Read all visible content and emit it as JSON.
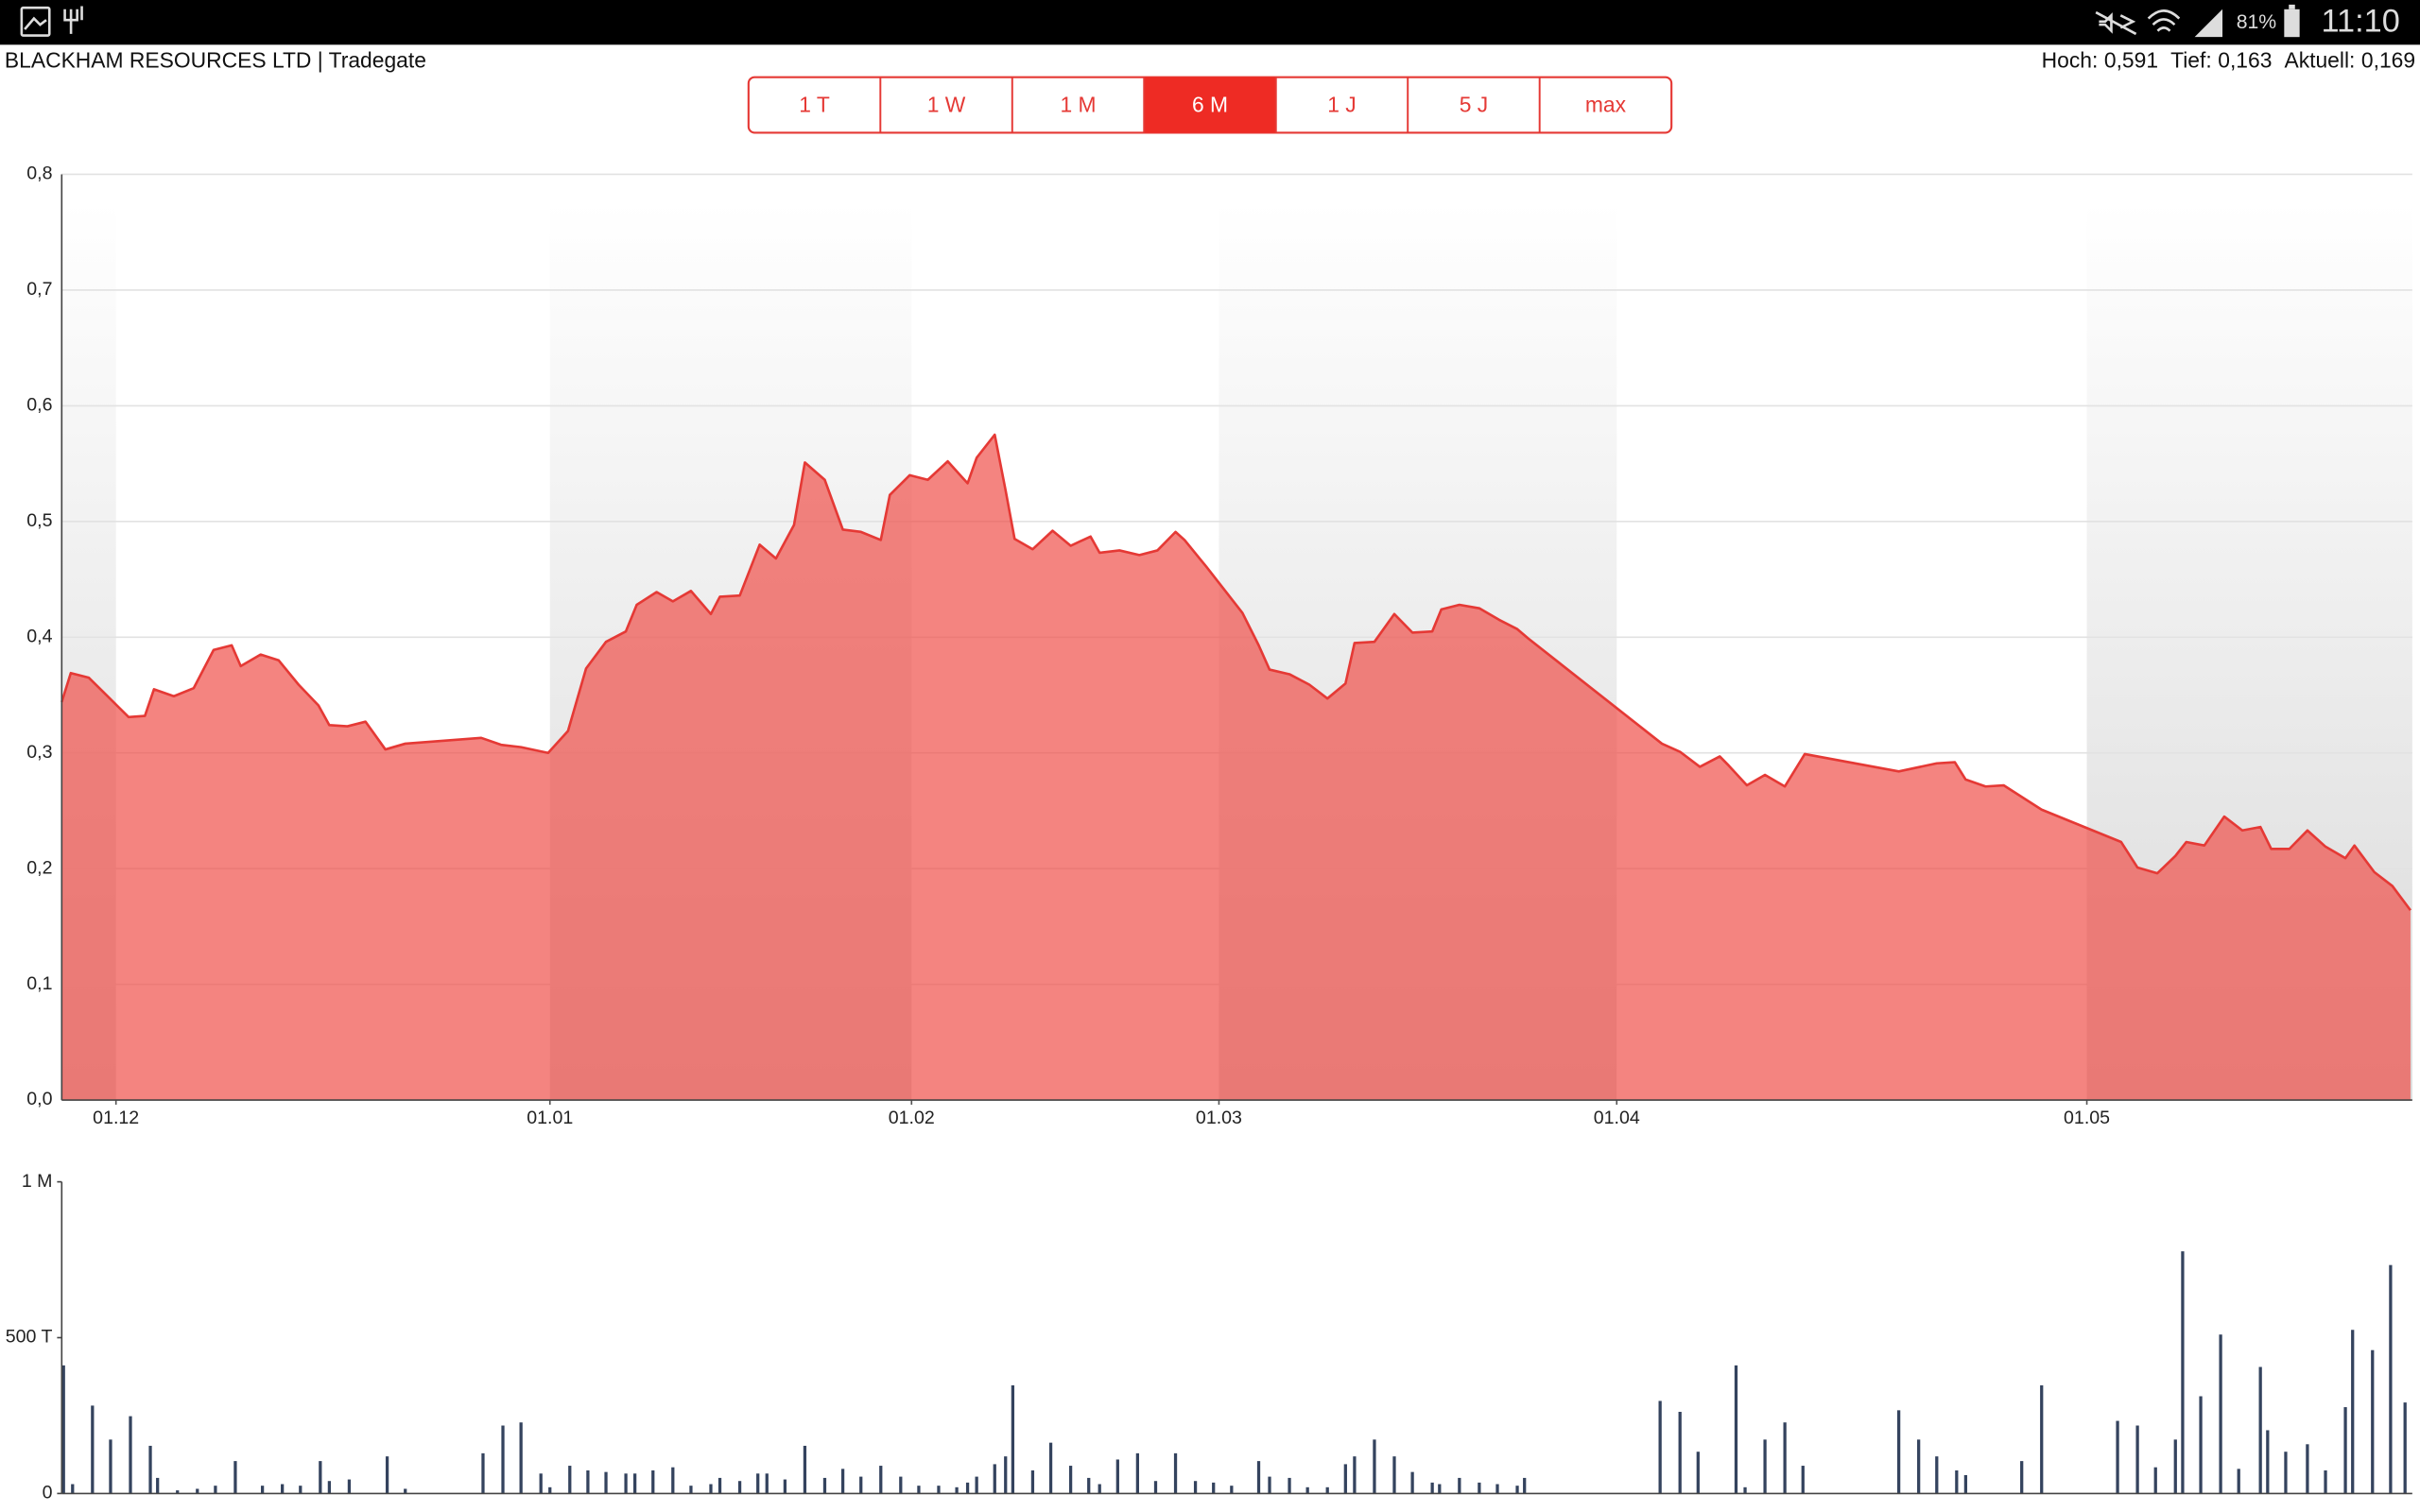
{
  "status_bar": {
    "battery": "81%",
    "time": "11:10"
  },
  "header": {
    "title": "BLACKHAM RESOURCES LTD | Tradegate",
    "stats": [
      {
        "label": "Hoch:",
        "value": "0,591"
      },
      {
        "label": "Tief:",
        "value": "0,163"
      },
      {
        "label": "Aktuell:",
        "value": "0,169"
      }
    ]
  },
  "tabs": [
    "1 T",
    "1 W",
    "1 M",
    "6 M",
    "1 J",
    "5 J",
    "max"
  ],
  "active_tab": 3,
  "chart_data": [
    {
      "type": "area",
      "color": "#e53935",
      "fill": "#f0504a",
      "grid": true,
      "x": [
        0,
        0.5,
        1.5,
        2.6,
        3.7,
        4.6,
        5.1,
        6.2,
        7.3,
        8.4,
        9.4,
        9.9,
        11.0,
        12.0,
        13.1,
        14.2,
        14.8,
        15.8,
        16.8,
        17.9,
        19.0,
        23.2,
        24.3,
        25.4,
        26.9,
        28.0,
        29.0,
        30.1,
        31.2,
        31.8,
        32.9,
        33.8,
        34.8,
        35.9,
        36.4,
        37.5,
        38.6,
        39.5,
        40.5,
        41.1,
        42.2,
        43.2,
        44.2,
        45.3,
        45.8,
        46.9,
        47.9,
        49.0,
        50.1,
        50.6,
        51.6,
        52.2,
        52.7,
        53.7,
        54.8,
        55.8,
        56.9,
        57.4,
        58.5,
        59.6,
        60.6,
        61.6,
        62.1,
        63.3,
        64.3,
        65.3,
        66.2,
        66.8,
        67.9,
        69.0,
        70.0,
        71.0,
        71.5,
        72.6,
        73.7,
        74.7,
        75.8,
        76.3,
        77.3,
        78.4,
        79.5,
        80.5,
        81.1,
        88.5,
        89.5,
        90.6,
        91.7,
        92.2,
        93.2,
        94.2,
        95.3,
        96.4,
        101.6,
        103.7,
        104.7,
        105.3,
        106.4,
        107.4,
        109.5,
        113.9,
        114.8,
        115.9,
        116.9,
        117.5,
        118.5,
        119.6,
        120.6,
        121.6,
        122.2,
        123.2,
        124.2,
        125.2,
        126.3,
        126.8,
        127.9,
        128.9,
        129.9
      ],
      "values": [
        0.344,
        0.369,
        0.365,
        0.348,
        0.331,
        0.332,
        0.355,
        0.349,
        0.356,
        0.389,
        0.393,
        0.375,
        0.385,
        0.38,
        0.359,
        0.341,
        0.324,
        0.323,
        0.327,
        0.303,
        0.308,
        0.313,
        0.307,
        0.305,
        0.3,
        0.319,
        0.373,
        0.396,
        0.405,
        0.428,
        0.439,
        0.431,
        0.44,
        0.42,
        0.435,
        0.436,
        0.48,
        0.468,
        0.497,
        0.551,
        0.536,
        0.493,
        0.491,
        0.484,
        0.523,
        0.54,
        0.536,
        0.552,
        0.533,
        0.555,
        0.575,
        0.527,
        0.485,
        0.476,
        0.492,
        0.479,
        0.487,
        0.473,
        0.475,
        0.471,
        0.475,
        0.491,
        0.484,
        0.461,
        0.441,
        0.421,
        0.393,
        0.372,
        0.368,
        0.359,
        0.347,
        0.36,
        0.395,
        0.396,
        0.42,
        0.404,
        0.405,
        0.424,
        0.428,
        0.425,
        0.415,
        0.407,
        0.399,
        0.308,
        0.301,
        0.288,
        0.297,
        0.289,
        0.272,
        0.281,
        0.271,
        0.299,
        0.284,
        0.291,
        0.292,
        0.277,
        0.271,
        0.272,
        0.251,
        0.223,
        0.201,
        0.196,
        0.211,
        0.223,
        0.22,
        0.245,
        0.233,
        0.236,
        0.217,
        0.217,
        0.233,
        0.219,
        0.209,
        0.22,
        0.197,
        0.185,
        0.164
      ],
      "xlim": [
        0,
        130
      ],
      "xticks": [
        {
          "value": 3,
          "label": "01.12"
        },
        {
          "value": 27,
          "label": "01.01"
        },
        {
          "value": 47,
          "label": "01.02"
        },
        {
          "value": 64,
          "label": "01.03"
        },
        {
          "value": 86,
          "label": "01.04"
        },
        {
          "value": 112,
          "label": "01.05"
        }
      ],
      "ylim": [
        0,
        0.8
      ],
      "yticks": [
        {
          "value": 0,
          "label": "0,0"
        },
        {
          "value": 0.1,
          "label": "0,1"
        },
        {
          "value": 0.2,
          "label": "0,2"
        },
        {
          "value": 0.3,
          "label": "0,3"
        },
        {
          "value": 0.4,
          "label": "0,4"
        },
        {
          "value": 0.5,
          "label": "0,5"
        },
        {
          "value": 0.6,
          "label": "0,6"
        },
        {
          "value": 0.7,
          "label": "0,7"
        },
        {
          "value": 0.8,
          "label": "0,8"
        }
      ]
    },
    {
      "type": "bar",
      "color": "#34435e",
      "x": [
        0.1,
        0.6,
        1.7,
        2.7,
        3.8,
        4.9,
        5.3,
        6.4,
        7.5,
        8.5,
        9.6,
        11.1,
        12.2,
        13.2,
        14.3,
        14.8,
        15.9,
        18.0,
        19.0,
        23.3,
        24.4,
        25.4,
        26.5,
        27.0,
        28.1,
        29.1,
        30.1,
        31.2,
        31.7,
        32.7,
        33.8,
        34.8,
        35.9,
        36.4,
        37.5,
        38.5,
        39.0,
        40.0,
        41.1,
        42.2,
        43.2,
        44.2,
        45.3,
        46.4,
        47.4,
        48.5,
        49.5,
        50.1,
        50.6,
        51.6,
        52.2,
        52.6,
        53.7,
        54.7,
        55.8,
        56.8,
        57.4,
        58.4,
        59.5,
        60.5,
        61.6,
        62.7,
        63.7,
        64.7,
        66.2,
        66.8,
        67.9,
        68.9,
        70.0,
        71.0,
        71.5,
        72.6,
        73.7,
        74.7,
        75.8,
        76.2,
        77.3,
        78.4,
        79.4,
        80.5,
        80.9,
        88.4,
        89.5,
        90.5,
        92.6,
        93.1,
        94.2,
        95.3,
        96.3,
        101.6,
        102.7,
        103.7,
        104.8,
        105.3,
        108.4,
        109.5,
        113.7,
        114.8,
        115.8,
        116.9,
        117.3,
        118.3,
        119.4,
        120.4,
        121.6,
        122.0,
        123.0,
        124.2,
        125.2,
        126.3,
        126.7,
        127.8,
        128.8,
        129.6
      ],
      "values": [
        411000,
        30000,
        282000,
        173000,
        248000,
        153000,
        50000,
        10000,
        15000,
        25000,
        104000,
        25000,
        30000,
        25000,
        104000,
        40000,
        45000,
        119000,
        15000,
        129000,
        218000,
        228000,
        64000,
        20000,
        89000,
        74000,
        69000,
        64000,
        64000,
        74000,
        84000,
        25000,
        30000,
        50000,
        40000,
        64000,
        64000,
        45000,
        153000,
        50000,
        79000,
        54000,
        89000,
        54000,
        25000,
        25000,
        20000,
        35000,
        54000,
        94000,
        119000,
        347000,
        74000,
        163000,
        89000,
        50000,
        30000,
        109000,
        129000,
        40000,
        129000,
        40000,
        35000,
        25000,
        104000,
        54000,
        50000,
        20000,
        20000,
        94000,
        119000,
        173000,
        119000,
        69000,
        35000,
        30000,
        50000,
        35000,
        30000,
        25000,
        50000,
        297000,
        262000,
        134000,
        411000,
        20000,
        173000,
        228000,
        89000,
        267000,
        173000,
        119000,
        74000,
        59000,
        104000,
        347000,
        233000,
        218000,
        84000,
        173000,
        777000,
        312000,
        510000,
        79000,
        406000,
        203000,
        134000,
        158000,
        74000,
        277000,
        525000,
        460000,
        733000,
        292000
      ],
      "xlim": [
        0,
        130
      ],
      "ylim": [
        0,
        1000000
      ],
      "yticks": [
        {
          "value": 0,
          "label": "0"
        },
        {
          "value": 500000,
          "label": "500 T"
        },
        {
          "value": 1000000,
          "label": "1 M"
        }
      ]
    }
  ]
}
